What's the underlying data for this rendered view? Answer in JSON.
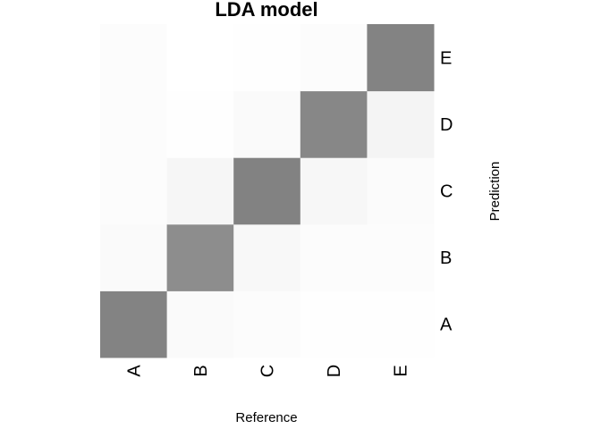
{
  "chart_data": {
    "type": "heatmap",
    "title": "LDA model",
    "xlabel": "Reference",
    "ylabel": "Prediction",
    "x_categories": [
      "A",
      "B",
      "C",
      "D",
      "E"
    ],
    "y_categories": [
      "A",
      "B",
      "C",
      "D",
      "E"
    ],
    "value_scale": "proportion",
    "cells": [
      {
        "ref": "A",
        "pred": "A",
        "value": 0.93
      },
      {
        "ref": "A",
        "pred": "B",
        "value": 0.04
      },
      {
        "ref": "A",
        "pred": "C",
        "value": 0.02
      },
      {
        "ref": "A",
        "pred": "D",
        "value": 0.02
      },
      {
        "ref": "A",
        "pred": "E",
        "value": 0.02
      },
      {
        "ref": "B",
        "pred": "A",
        "value": 0.04
      },
      {
        "ref": "B",
        "pred": "B",
        "value": 0.86
      },
      {
        "ref": "B",
        "pred": "C",
        "value": 0.07
      },
      {
        "ref": "B",
        "pred": "D",
        "value": 0.01
      },
      {
        "ref": "B",
        "pred": "E",
        "value": 0.0
      },
      {
        "ref": "C",
        "pred": "A",
        "value": 0.02
      },
      {
        "ref": "C",
        "pred": "B",
        "value": 0.05
      },
      {
        "ref": "C",
        "pred": "C",
        "value": 0.94
      },
      {
        "ref": "C",
        "pred": "D",
        "value": 0.04
      },
      {
        "ref": "C",
        "pred": "E",
        "value": 0.01
      },
      {
        "ref": "D",
        "pred": "A",
        "value": 0.01
      },
      {
        "ref": "D",
        "pred": "B",
        "value": 0.02
      },
      {
        "ref": "D",
        "pred": "C",
        "value": 0.06
      },
      {
        "ref": "D",
        "pred": "D",
        "value": 0.9
      },
      {
        "ref": "D",
        "pred": "E",
        "value": 0.02
      },
      {
        "ref": "E",
        "pred": "A",
        "value": 0.01
      },
      {
        "ref": "E",
        "pred": "B",
        "value": 0.02
      },
      {
        "ref": "E",
        "pred": "C",
        "value": 0.03
      },
      {
        "ref": "E",
        "pred": "D",
        "value": 0.08
      },
      {
        "ref": "E",
        "pred": "E",
        "value": 0.93
      }
    ],
    "color_low": "#ffffff",
    "color_high": "#7a7a7a",
    "legend": "none"
  }
}
